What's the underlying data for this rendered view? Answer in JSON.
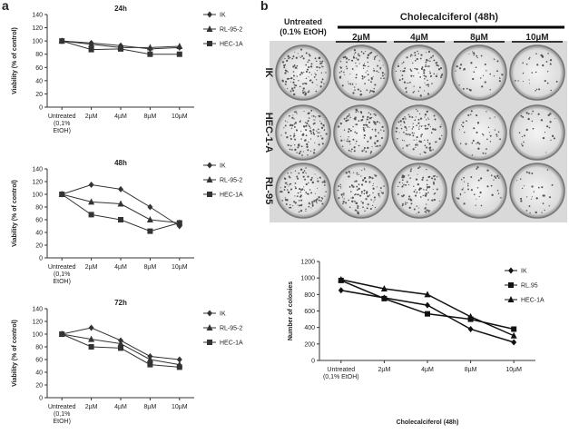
{
  "panel_labels": [
    "a",
    "b"
  ],
  "plates": {
    "untreated_header": "Untreated\n(0.1% EtOH)",
    "treatment_header": "Cholecalciferol (48h)",
    "columns": [
      "2µM",
      "4µM",
      "8µM",
      "10µM"
    ],
    "rows": [
      "IK",
      "HEC-1-A",
      "RL-95"
    ]
  },
  "chart_data": [
    {
      "type": "line",
      "title": "24h",
      "y_label": "Viability (% of control)",
      "categories": [
        "Untreated\n(0,1%\nEtOH)",
        "2µM",
        "4µM",
        "8µM",
        "10µM"
      ],
      "ylim": [
        0,
        140
      ],
      "yticks": [
        0,
        20,
        40,
        60,
        80,
        100,
        120,
        140
      ],
      "legend": "right",
      "series": [
        {
          "name": "IK",
          "color": "#333333",
          "marker": "diamond",
          "values": [
            100,
            97,
            93,
            88,
            90
          ]
        },
        {
          "name": "RL-95-2",
          "color": "#333333",
          "marker": "triangle",
          "values": [
            100,
            95,
            90,
            90,
            92
          ]
        },
        {
          "name": "HEC-1A",
          "color": "#333333",
          "marker": "square",
          "values": [
            100,
            87,
            88,
            80,
            80
          ]
        }
      ]
    },
    {
      "type": "line",
      "title": "48h",
      "y_label": "Viability (% of control)",
      "categories": [
        "Untreated\n(0,1%\nEtOH)",
        "2µM",
        "4µM",
        "8µM",
        "10µM"
      ],
      "ylim": [
        0,
        140
      ],
      "yticks": [
        0,
        20,
        40,
        60,
        80,
        100,
        120,
        140
      ],
      "legend": "right",
      "series": [
        {
          "name": "IK",
          "color": "#333333",
          "marker": "diamond",
          "values": [
            100,
            115,
            108,
            80,
            50
          ]
        },
        {
          "name": "RL-95-2",
          "color": "#333333",
          "marker": "triangle",
          "values": [
            100,
            88,
            85,
            60,
            55
          ]
        },
        {
          "name": "HEC-1A",
          "color": "#333333",
          "marker": "square",
          "values": [
            100,
            68,
            60,
            42,
            55
          ]
        }
      ]
    },
    {
      "type": "line",
      "title": "72h",
      "y_label": "Viability (% of control)",
      "categories": [
        "Untreated\n(0,1%\nEtOH)",
        "2µM",
        "4µM",
        "8µM",
        "10µM"
      ],
      "ylim": [
        0,
        140
      ],
      "yticks": [
        0,
        20,
        40,
        60,
        80,
        100,
        120,
        140
      ],
      "legend": "right",
      "series": [
        {
          "name": "IK",
          "color": "#333333",
          "marker": "diamond",
          "values": [
            100,
            110,
            90,
            65,
            60
          ]
        },
        {
          "name": "RL-95-2",
          "color": "#333333",
          "marker": "triangle",
          "values": [
            100,
            92,
            85,
            60,
            52
          ]
        },
        {
          "name": "HEC-1A",
          "color": "#333333",
          "marker": "square",
          "values": [
            100,
            80,
            78,
            52,
            48
          ]
        }
      ]
    },
    {
      "type": "line",
      "x_label": "Cholecalciferol (48h)",
      "y_label": "Number of colonies",
      "categories": [
        "Untreated\n(0,1% EtOH)",
        "2µM",
        "4µM",
        "8µM",
        "10µM"
      ],
      "ylim": [
        0,
        1200
      ],
      "yticks": [
        0,
        200,
        400,
        600,
        800,
        1000,
        1200
      ],
      "legend": "right",
      "series": [
        {
          "name": "IK",
          "color": "#111111",
          "marker": "diamond",
          "values": [
            850,
            760,
            670,
            380,
            220
          ]
        },
        {
          "name": "RL.95",
          "color": "#111111",
          "marker": "square",
          "values": [
            970,
            750,
            565,
            500,
            380
          ]
        },
        {
          "name": "HEC-1A",
          "color": "#111111",
          "marker": "triangle",
          "values": [
            980,
            870,
            800,
            530,
            300
          ]
        }
      ]
    }
  ]
}
